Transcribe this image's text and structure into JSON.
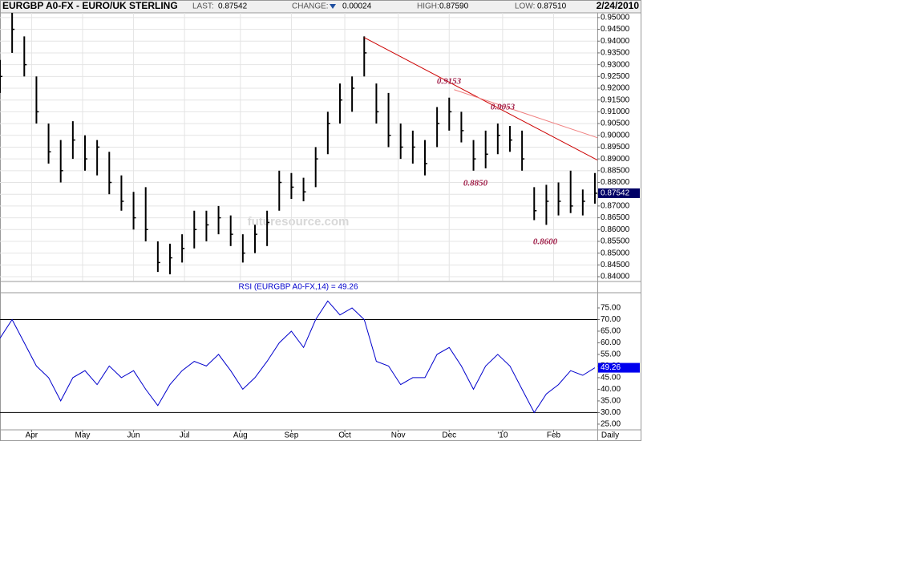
{
  "header": {
    "title": "EURGBP A0-FX - EURO/UK STERLING",
    "last_label": "LAST:",
    "last": "0.87542",
    "change_label": "CHANGE:",
    "change": "0.00024",
    "high_label": "HIGH:",
    "high": "0.87590",
    "low_label": "LOW:",
    "low": "0.87510",
    "date": "2/24/2010"
  },
  "x_unit_label": "Daily",
  "chart_data": [
    {
      "type": "ohlc",
      "color": "#000000",
      "watermark": "futuresource.com",
      "x": [
        0,
        5,
        10,
        15,
        20,
        25,
        30,
        35,
        40,
        45,
        50,
        55,
        60,
        65,
        70,
        75,
        80,
        85,
        90,
        95,
        100,
        105,
        110,
        115,
        120,
        125,
        130,
        135,
        140,
        145,
        150,
        155,
        160,
        165,
        170,
        175,
        180,
        185,
        190,
        195,
        200,
        205,
        210,
        215,
        220,
        225,
        230,
        235,
        240,
        245
      ],
      "high": [
        0.932,
        0.952,
        0.942,
        0.925,
        0.905,
        0.898,
        0.906,
        0.9,
        0.898,
        0.893,
        0.883,
        0.876,
        0.878,
        0.855,
        0.854,
        0.858,
        0.868,
        0.868,
        0.87,
        0.866,
        0.858,
        0.862,
        0.868,
        0.885,
        0.884,
        0.882,
        0.895,
        0.91,
        0.922,
        0.925,
        0.942,
        0.922,
        0.918,
        0.905,
        0.902,
        0.898,
        0.912,
        0.916,
        0.91,
        0.898,
        0.902,
        0.905,
        0.904,
        0.902,
        0.878,
        0.879,
        0.88,
        0.885,
        0.877,
        0.884
      ],
      "low": [
        0.918,
        0.935,
        0.925,
        0.905,
        0.888,
        0.88,
        0.89,
        0.885,
        0.883,
        0.875,
        0.868,
        0.86,
        0.855,
        0.842,
        0.841,
        0.846,
        0.852,
        0.855,
        0.858,
        0.853,
        0.846,
        0.85,
        0.853,
        0.868,
        0.873,
        0.872,
        0.878,
        0.892,
        0.905,
        0.91,
        0.925,
        0.905,
        0.895,
        0.89,
        0.888,
        0.883,
        0.895,
        0.902,
        0.897,
        0.885,
        0.886,
        0.892,
        0.893,
        0.885,
        0.864,
        0.862,
        0.866,
        0.867,
        0.866,
        0.871
      ],
      "close": [
        0.925,
        0.945,
        0.93,
        0.91,
        0.893,
        0.885,
        0.898,
        0.89,
        0.895,
        0.88,
        0.872,
        0.865,
        0.86,
        0.846,
        0.848,
        0.852,
        0.86,
        0.862,
        0.865,
        0.858,
        0.85,
        0.858,
        0.863,
        0.88,
        0.878,
        0.876,
        0.89,
        0.905,
        0.915,
        0.92,
        0.935,
        0.91,
        0.9,
        0.895,
        0.895,
        0.888,
        0.905,
        0.91,
        0.902,
        0.89,
        0.892,
        0.9,
        0.898,
        0.89,
        0.868,
        0.872,
        0.872,
        0.87,
        0.872,
        0.87542
      ],
      "value_labels": {
        "49": "0.87542"
      },
      "xlim": [
        0,
        246
      ],
      "ylim": [
        0.8383,
        0.952
      ],
      "yticks": [
        {
          "value": 0.84,
          "label": "0.84000"
        },
        {
          "value": 0.845,
          "label": "0.84500"
        },
        {
          "value": 0.85,
          "label": "0.85000"
        },
        {
          "value": 0.855,
          "label": "0.85500"
        },
        {
          "value": 0.86,
          "label": "0.86000"
        },
        {
          "value": 0.865,
          "label": "0.86500"
        },
        {
          "value": 0.87,
          "label": "0.87000"
        },
        {
          "value": 0.875,
          "label": "0.87500"
        },
        {
          "value": 0.88,
          "label": "0.88000"
        },
        {
          "value": 0.885,
          "label": "0.88500"
        },
        {
          "value": 0.89,
          "label": "0.89000"
        },
        {
          "value": 0.895,
          "label": "0.89500"
        },
        {
          "value": 0.9,
          "label": "0.90000"
        },
        {
          "value": 0.905,
          "label": "0.90500"
        },
        {
          "value": 0.91,
          "label": "0.91000"
        },
        {
          "value": 0.915,
          "label": "0.91500"
        },
        {
          "value": 0.92,
          "label": "0.92000"
        },
        {
          "value": 0.925,
          "label": "0.92500"
        },
        {
          "value": 0.93,
          "label": "0.93000"
        },
        {
          "value": 0.935,
          "label": "0.93500"
        },
        {
          "value": 0.94,
          "label": "0.94000"
        },
        {
          "value": 0.945,
          "label": "0.94500"
        },
        {
          "value": 0.95,
          "label": "0.95000"
        }
      ],
      "grid": true,
      "trendlines": [
        {
          "x": [
            150,
            246
          ],
          "y": [
            0.9415,
            0.8895
          ],
          "color": "#cc0000"
        },
        {
          "x": [
            187,
            246
          ],
          "y": [
            0.9194,
            0.899
          ],
          "color": "#f08080"
        }
      ],
      "annotations": [
        "0.9153",
        "0.9053",
        "0.8850",
        "0.8600"
      ]
    },
    {
      "type": "line",
      "title": "RSI (EURGBP A0-FX,14) = 49.26",
      "color": "#0000cc",
      "x": [
        0,
        5,
        10,
        15,
        20,
        25,
        30,
        35,
        40,
        45,
        50,
        55,
        60,
        65,
        70,
        75,
        80,
        85,
        90,
        95,
        100,
        105,
        110,
        115,
        120,
        125,
        130,
        135,
        140,
        145,
        150,
        155,
        160,
        165,
        170,
        175,
        180,
        185,
        190,
        195,
        200,
        205,
        210,
        215,
        220,
        225,
        230,
        235,
        240,
        245
      ],
      "values": [
        62,
        70,
        60,
        50,
        45,
        35,
        45,
        48,
        42,
        50,
        45,
        48,
        40,
        33,
        42,
        48,
        52,
        50,
        55,
        48,
        40,
        45,
        52,
        60,
        65,
        58,
        70,
        78,
        72,
        75,
        70,
        52,
        50,
        42,
        45,
        45,
        55,
        58,
        50,
        40,
        50,
        55,
        50,
        40,
        30,
        38,
        42,
        48,
        46,
        49.26
      ],
      "xlim": [
        0,
        246
      ],
      "ylim": [
        22.9,
        81.2
      ],
      "yticks": [
        {
          "value": 25,
          "label": "25.00"
        },
        {
          "value": 30,
          "label": "30.00"
        },
        {
          "value": 35,
          "label": "35.00"
        },
        {
          "value": 40,
          "label": "40.00"
        },
        {
          "value": 45,
          "label": "45.00"
        },
        {
          "value": 50,
          "label": "50.00"
        },
        {
          "value": 55,
          "label": "55.00"
        },
        {
          "value": 60,
          "label": "60.00"
        },
        {
          "value": 65,
          "label": "65.00"
        },
        {
          "value": 70,
          "label": "70.00"
        },
        {
          "value": 75,
          "label": "75.00"
        }
      ],
      "hlines": [
        30,
        70
      ],
      "xticks": [
        {
          "value": 13,
          "label": "Apr"
        },
        {
          "value": 34,
          "label": "May"
        },
        {
          "value": 55,
          "label": "Jun"
        },
        {
          "value": 76,
          "label": "Jul"
        },
        {
          "value": 99,
          "label": "Aug"
        },
        {
          "value": 120,
          "label": "Sep"
        },
        {
          "value": 142,
          "label": "Oct"
        },
        {
          "value": 164,
          "label": "Nov"
        },
        {
          "value": 185,
          "label": "Dec"
        },
        {
          "value": 207,
          "label": "'10"
        },
        {
          "value": 228,
          "label": "Feb"
        }
      ]
    }
  ]
}
